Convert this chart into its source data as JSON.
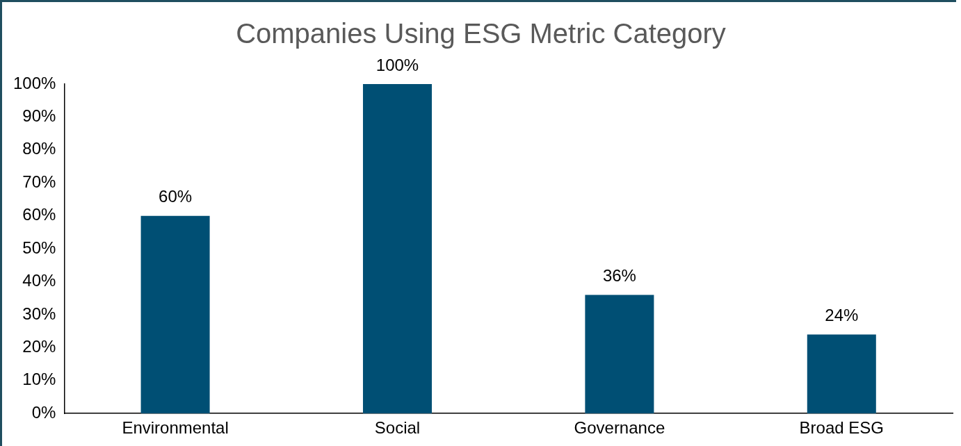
{
  "chart_data": {
    "type": "bar",
    "title": "Companies Using ESG Metric Category",
    "categories": [
      "Environmental",
      "Social",
      "Governance",
      "Broad ESG"
    ],
    "values": [
      60,
      100,
      36,
      24
    ],
    "color": "#004f74",
    "value_labels": [
      "60%",
      "100%",
      "36%",
      "24%"
    ],
    "ylim": [
      0,
      100
    ],
    "yticks": [
      {
        "value": 0,
        "label": "0%"
      },
      {
        "value": 10,
        "label": "10%"
      },
      {
        "value": 20,
        "label": "20%"
      },
      {
        "value": 30,
        "label": "30%"
      },
      {
        "value": 40,
        "label": "40%"
      },
      {
        "value": 50,
        "label": "50%"
      },
      {
        "value": 60,
        "label": "60%"
      },
      {
        "value": 70,
        "label": "70%"
      },
      {
        "value": 80,
        "label": "80%"
      },
      {
        "value": 90,
        "label": "90%"
      },
      {
        "value": 100,
        "label": "100%"
      }
    ],
    "grid": false,
    "legend": false
  }
}
